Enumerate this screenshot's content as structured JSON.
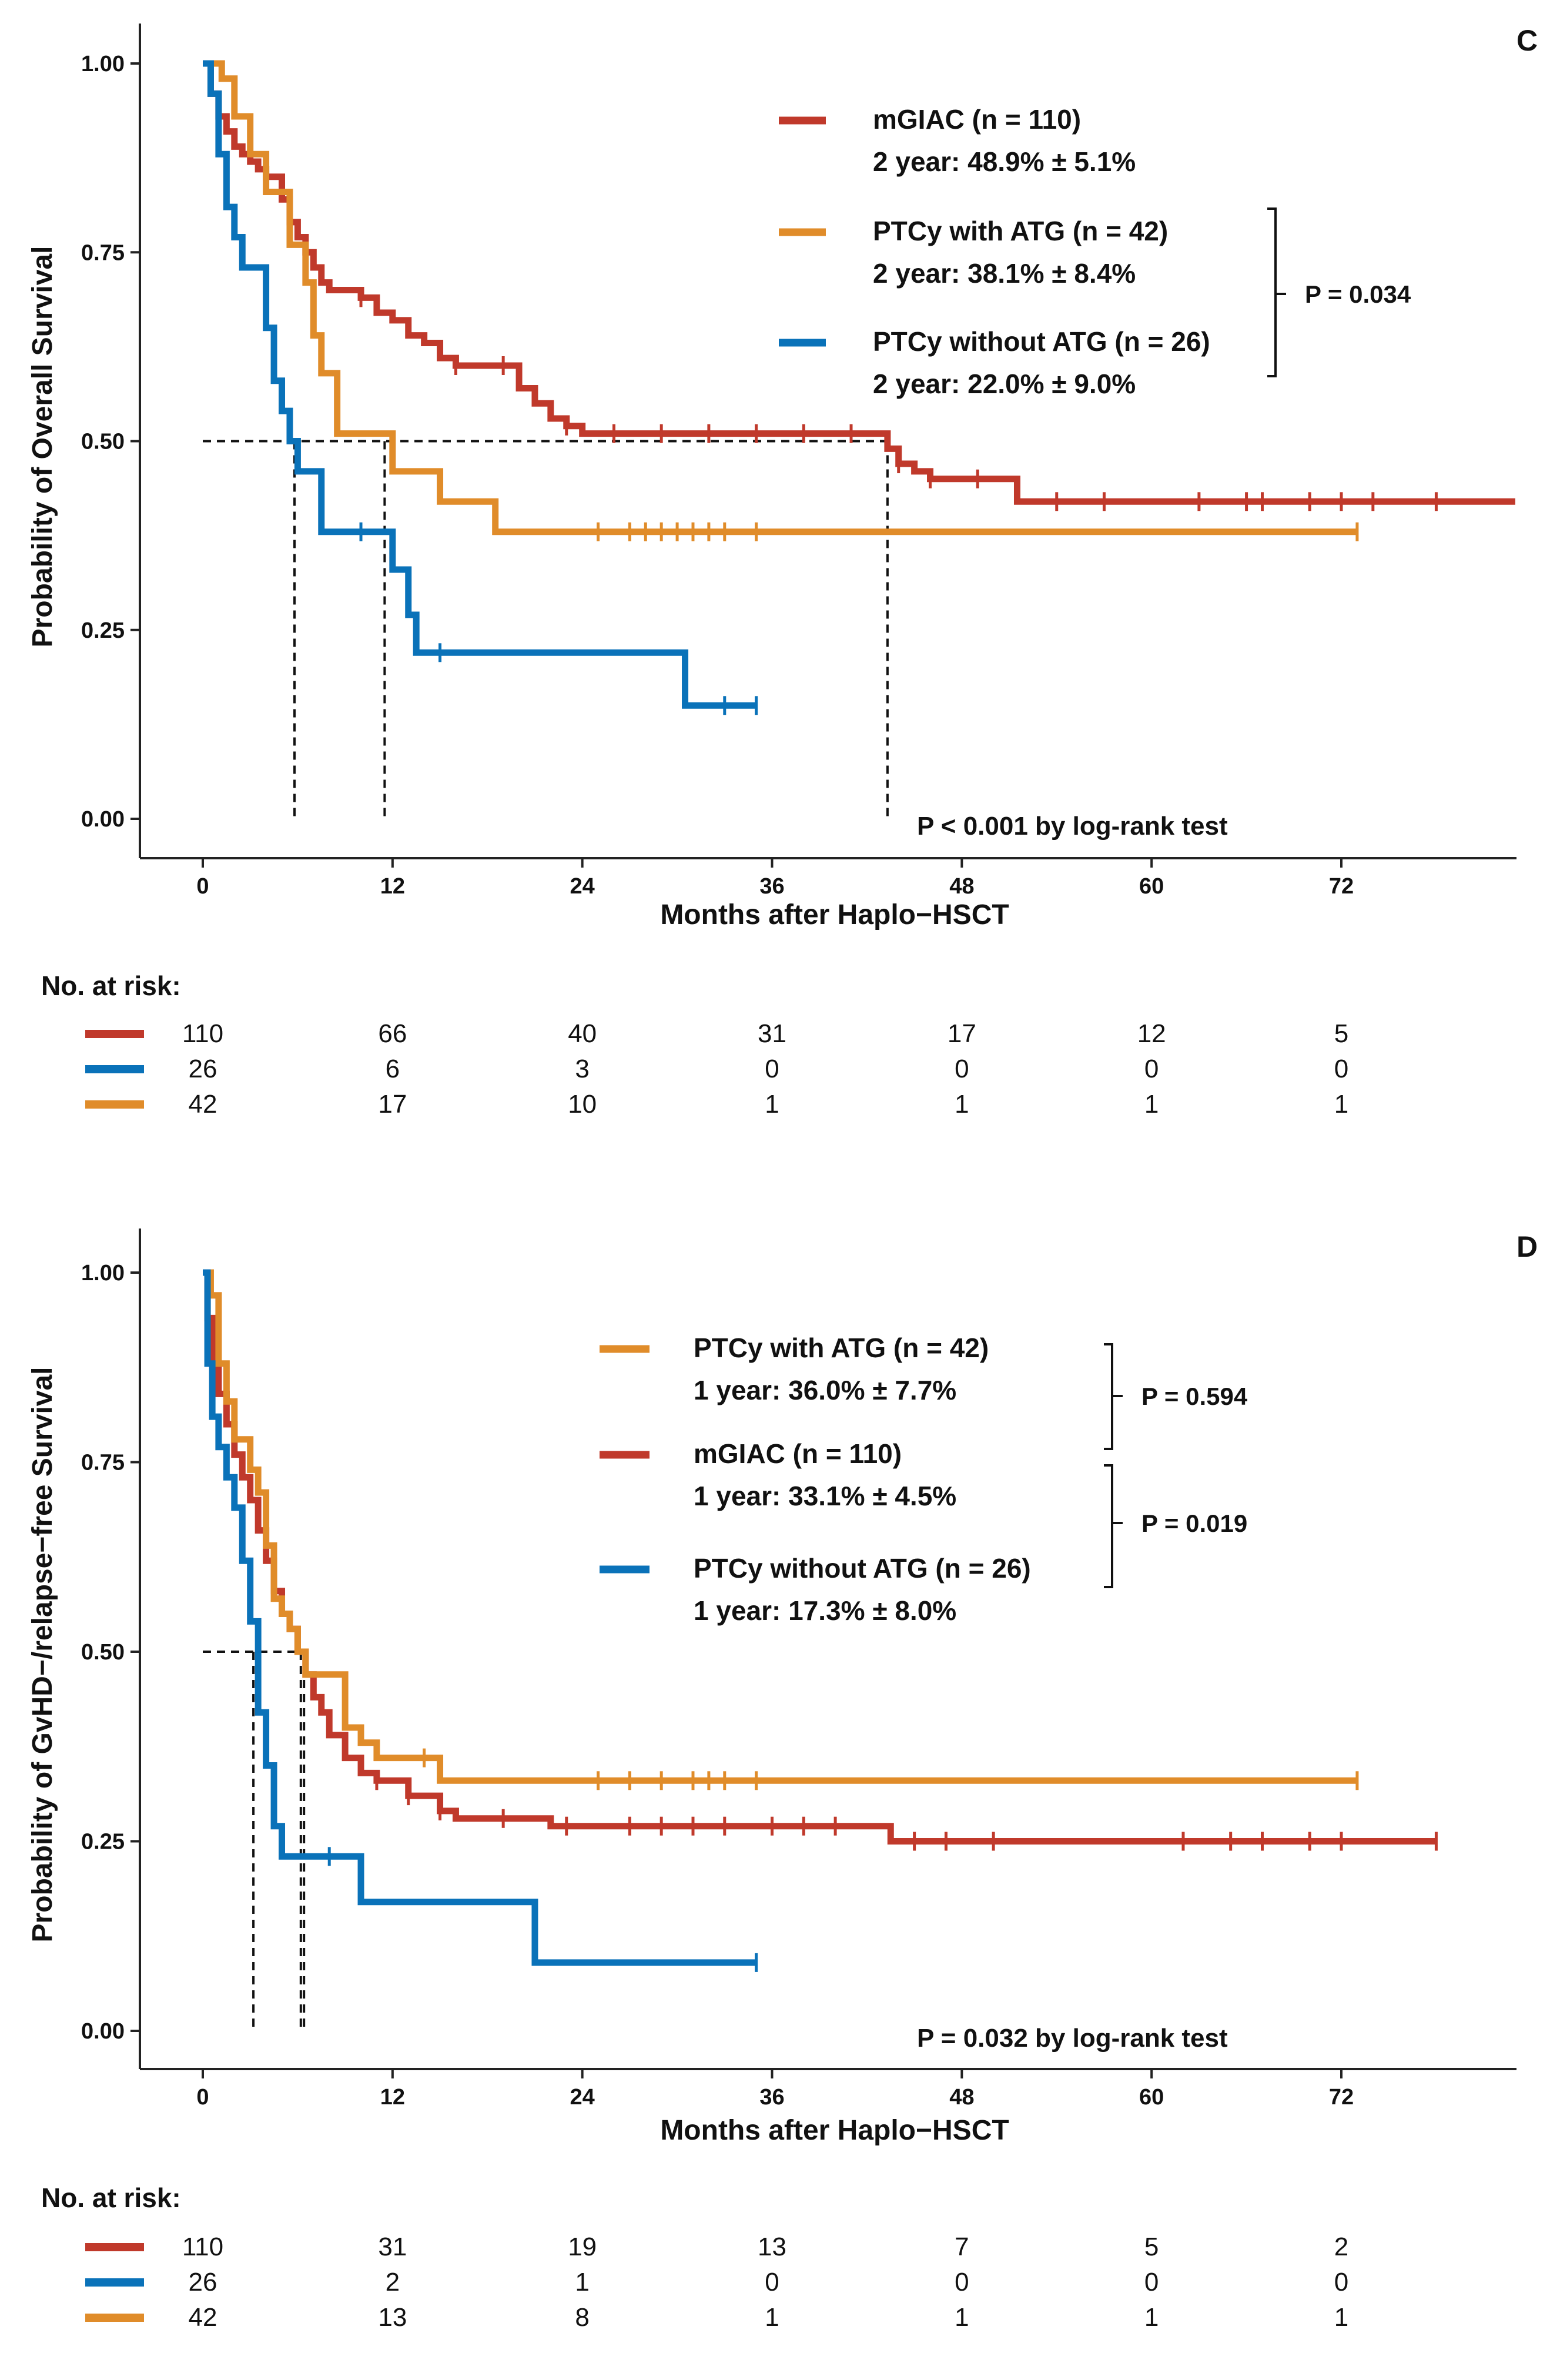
{
  "chart_data": [
    {
      "type": "line",
      "panel_label": "C",
      "ylabel": "Probability of Overall Survival",
      "xlabel": "Months after Haplo−HSCT",
      "xlim": [
        0,
        83
      ],
      "ylim": [
        0,
        1
      ],
      "xticks": [
        "0",
        "12",
        "24",
        "36",
        "48",
        "60",
        "72"
      ],
      "yticks": [
        "0.00",
        "0.25",
        "0.50",
        "0.75",
        "1.00"
      ],
      "pvalue_text": "P < 0.001 by log-rank test",
      "bracket_p": "P = 0.034",
      "legend": [
        {
          "key": "mgiac",
          "name": "mGIAC (n = 110)",
          "stat": "2 year: 48.9% ± 5.1%"
        },
        {
          "key": "ptcy_atg",
          "name": "PTCy with ATG (n = 42)",
          "stat": "2 year: 38.1% ± 8.4%"
        },
        {
          "key": "ptcy_noatg",
          "name": "PTCy without ATG (n = 26)",
          "stat": "2 year: 22.0% ± 9.0%"
        }
      ],
      "medians_months": [
        5.8,
        11.5,
        43.3
      ],
      "series": [
        {
          "key": "mgiac",
          "name": "mGIAC",
          "color": "#c0392b",
          "x": [
            0,
            0.5,
            1,
            1.5,
            2,
            2.5,
            3,
            3.5,
            4,
            5,
            5.5,
            6,
            6.5,
            7,
            7.5,
            8,
            9,
            10,
            11,
            12,
            13,
            14,
            15,
            16,
            17,
            18,
            20,
            21,
            22,
            23,
            24,
            43.3,
            44,
            45,
            46,
            51.5,
            83
          ],
          "y": [
            1.0,
            0.96,
            0.93,
            0.91,
            0.89,
            0.88,
            0.87,
            0.86,
            0.85,
            0.82,
            0.79,
            0.77,
            0.75,
            0.73,
            0.71,
            0.7,
            0.7,
            0.69,
            0.67,
            0.66,
            0.64,
            0.63,
            0.61,
            0.6,
            0.6,
            0.6,
            0.57,
            0.55,
            0.53,
            0.52,
            0.51,
            0.49,
            0.47,
            0.46,
            0.45,
            0.42,
            0.42
          ],
          "censor_x": [
            10,
            16,
            19,
            23,
            26,
            29,
            32,
            35,
            38,
            41,
            44,
            46,
            49,
            54,
            57,
            63,
            66,
            67,
            70,
            72,
            74,
            78
          ]
        },
        {
          "key": "ptcy_atg",
          "name": "PTCy with ATG",
          "color": "#e08c2a",
          "x": [
            0,
            1.2,
            2,
            3,
            4,
            5.5,
            6.5,
            7,
            7.5,
            8.5,
            11,
            12,
            13,
            15,
            18.5,
            73
          ],
          "y": [
            1.0,
            0.98,
            0.93,
            0.88,
            0.83,
            0.76,
            0.71,
            0.64,
            0.59,
            0.51,
            0.51,
            0.46,
            0.46,
            0.42,
            0.38,
            0.38
          ],
          "censor_x": [
            25,
            27,
            28,
            29,
            30,
            31,
            32,
            33,
            35,
            73
          ]
        },
        {
          "key": "ptcy_noatg",
          "name": "PTCy without ATG",
          "color": "#0a72b9",
          "x": [
            0,
            0.5,
            1,
            1.5,
            2,
            2.5,
            4,
            4.5,
            5,
            5.5,
            6,
            7.5,
            11.5,
            12,
            13,
            13.5,
            30.5,
            35
          ],
          "y": [
            1.0,
            0.96,
            0.88,
            0.81,
            0.77,
            0.73,
            0.65,
            0.58,
            0.54,
            0.5,
            0.46,
            0.38,
            0.38,
            0.33,
            0.27,
            0.22,
            0.15,
            0.15
          ],
          "censor_x": [
            10,
            15,
            33,
            35
          ]
        }
      ],
      "risk_table": {
        "title": "No. at risk:",
        "rows": [
          {
            "key": "mgiac",
            "color": "#c0392b",
            "values": [
              "110",
              "66",
              "40",
              "31",
              "17",
              "12",
              "5"
            ]
          },
          {
            "key": "ptcy_noatg",
            "color": "#0a72b9",
            "values": [
              "26",
              "6",
              "3",
              "0",
              "0",
              "0",
              "0"
            ]
          },
          {
            "key": "ptcy_atg",
            "color": "#e08c2a",
            "values": [
              "42",
              "17",
              "10",
              "1",
              "1",
              "1",
              "1"
            ]
          }
        ]
      }
    },
    {
      "type": "line",
      "panel_label": "D",
      "ylabel": "Probability of GvHD−/relapse−free Survival",
      "xlabel": "Months after Haplo−HSCT",
      "xlim": [
        0,
        83
      ],
      "ylim": [
        0,
        1
      ],
      "xticks": [
        "0",
        "12",
        "24",
        "36",
        "48",
        "60",
        "72"
      ],
      "yticks": [
        "0.00",
        "0.25",
        "0.50",
        "0.75",
        "1.00"
      ],
      "pvalue_text": "P = 0.032 by log-rank test",
      "bracket_p": [
        "P = 0.594",
        "P = 0.019"
      ],
      "legend": [
        {
          "key": "ptcy_atg",
          "name": "PTCy with ATG (n = 42)",
          "stat": "1 year: 36.0% ± 7.7%"
        },
        {
          "key": "mgiac",
          "name": "mGIAC (n = 110)",
          "stat": "1 year: 33.1% ± 4.5%"
        },
        {
          "key": "ptcy_noatg",
          "name": "PTCy without ATG (n = 26)",
          "stat": "1 year: 17.3% ± 8.0%"
        }
      ],
      "medians_months": [
        3.2,
        6.2,
        6.4
      ],
      "series": [
        {
          "key": "mgiac",
          "name": "mGIAC",
          "color": "#c0392b",
          "x": [
            0,
            0.3,
            0.6,
            1,
            1.5,
            2,
            2.5,
            3,
            3.5,
            4,
            4.5,
            5,
            5.5,
            6,
            6.5,
            7,
            7.5,
            8,
            9,
            10,
            11,
            12,
            13,
            15,
            16,
            18,
            22,
            43.5,
            78
          ],
          "y": [
            1.0,
            0.94,
            0.88,
            0.84,
            0.8,
            0.76,
            0.73,
            0.7,
            0.66,
            0.62,
            0.58,
            0.55,
            0.53,
            0.5,
            0.47,
            0.44,
            0.42,
            0.39,
            0.36,
            0.34,
            0.33,
            0.33,
            0.31,
            0.29,
            0.28,
            0.28,
            0.27,
            0.25,
            0.25
          ],
          "censor_x": [
            11,
            13,
            15,
            19,
            23,
            27,
            29,
            31,
            33,
            36,
            38,
            40,
            45,
            47,
            50,
            62,
            65,
            67,
            70,
            72,
            78
          ]
        },
        {
          "key": "ptcy_atg",
          "name": "PTCy with ATG",
          "color": "#e08c2a",
          "x": [
            0,
            0.5,
            1,
            1.5,
            2,
            3,
            3.5,
            4,
            4.5,
            5,
            5.5,
            6,
            6.5,
            7,
            9,
            10,
            11,
            14.5,
            15,
            73
          ],
          "y": [
            1.0,
            0.97,
            0.88,
            0.83,
            0.78,
            0.74,
            0.71,
            0.64,
            0.57,
            0.55,
            0.53,
            0.5,
            0.47,
            0.47,
            0.4,
            0.38,
            0.36,
            0.36,
            0.33,
            0.33
          ],
          "censor_x": [
            14,
            25,
            27,
            29,
            31,
            32,
            33,
            35,
            73
          ]
        },
        {
          "key": "ptcy_noatg",
          "name": "PTCy without ATG",
          "color": "#0a72b9",
          "x": [
            0,
            0.3,
            0.6,
            1,
            1.5,
            2,
            2.5,
            3,
            3.5,
            4,
            4.5,
            5,
            9.5,
            10,
            21,
            35
          ],
          "y": [
            1.0,
            0.88,
            0.81,
            0.77,
            0.73,
            0.69,
            0.62,
            0.54,
            0.42,
            0.35,
            0.27,
            0.23,
            0.23,
            0.17,
            0.09,
            0.09
          ],
          "censor_x": [
            8,
            35
          ]
        }
      ],
      "risk_table": {
        "title": "No. at risk:",
        "rows": [
          {
            "key": "mgiac",
            "color": "#c0392b",
            "values": [
              "110",
              "31",
              "19",
              "13",
              "7",
              "5",
              "2"
            ]
          },
          {
            "key": "ptcy_noatg",
            "color": "#0a72b9",
            "values": [
              "26",
              "2",
              "1",
              "0",
              "0",
              "0",
              "0"
            ]
          },
          {
            "key": "ptcy_atg",
            "color": "#e08c2a",
            "values": [
              "42",
              "13",
              "8",
              "1",
              "1",
              "1",
              "1"
            ]
          }
        ]
      }
    }
  ]
}
